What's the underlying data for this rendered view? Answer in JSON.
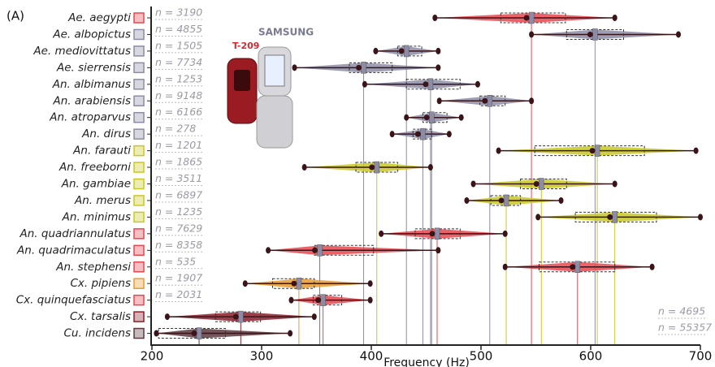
{
  "chart_data": {
    "type": "box",
    "panel_label": "(A)",
    "x_label": "Frequency (Hz)",
    "xlim": [
      200,
      700
    ],
    "xticks": [
      200,
      300,
      400,
      500,
      600,
      700
    ],
    "phone_brand": "SAMSUNG",
    "phone_model": "T-209",
    "categories": [
      "Ae. aegypti",
      "Ae. albopictus",
      "Ae. mediovittatus",
      "Ae. sierrensis",
      "An. albimanus",
      "An. arabiensis",
      "An. atroparvus",
      "An. dirus",
      "An. farauti",
      "An. freeborni",
      "An. gambiae",
      "An. merus",
      "An. minimus",
      "An. quadriannulatus",
      "An. quadrimaculatus",
      "An. stephensi",
      "Cx. pipiens",
      "Cx. quinquefasciatus",
      "Cx. tarsalis",
      "Cu. incidens"
    ],
    "n_labels": [
      "n = 3190",
      "n = 4855",
      "n = 1505",
      "n = 7734",
      "n = 1253",
      "n = 9148",
      "n = 6166",
      "n = 278",
      "n = 1201",
      "n = 1865",
      "n = 3511",
      "n = 6897",
      "n = 1235",
      "n = 7629",
      "n = 8358",
      "n = 535",
      "n = 1907",
      "n = 2031",
      "n = 4695",
      "n = 55357"
    ],
    "colors": [
      "#e8474f",
      "#8c8ca6",
      "#8c8ca6",
      "#8c8ca6",
      "#8c8ca6",
      "#8c8ca6",
      "#8c8ca6",
      "#8c8ca6",
      "#c8c824",
      "#c8c824",
      "#c8c824",
      "#c8c824",
      "#c8c824",
      "#e8474f",
      "#e8474f",
      "#e8474f",
      "#e89a30",
      "#e8474f",
      "#8a1f2a",
      "#5a3a40"
    ],
    "boxes": [
      {
        "min": 458,
        "q1": 518,
        "median": 546,
        "q3": 577,
        "max": 622
      },
      {
        "min": 546,
        "q1": 578,
        "median": 604,
        "q3": 630,
        "max": 680
      },
      {
        "min": 404,
        "q1": 424,
        "median": 432,
        "q3": 446,
        "max": 461
      },
      {
        "min": 330,
        "q1": 380,
        "median": 393,
        "q3": 419,
        "max": 461
      },
      {
        "min": 394,
        "q1": 432,
        "median": 454,
        "q3": 481,
        "max": 497
      },
      {
        "min": 462,
        "q1": 499,
        "median": 508,
        "q3": 522,
        "max": 546
      },
      {
        "min": 432,
        "q1": 447,
        "median": 455,
        "q3": 469,
        "max": 482
      },
      {
        "min": 419,
        "q1": 438,
        "median": 447,
        "q3": 455,
        "max": 471
      },
      {
        "min": 516,
        "q1": 549,
        "median": 606,
        "q3": 649,
        "max": 696
      },
      {
        "min": 339,
        "q1": 386,
        "median": 405,
        "q3": 424,
        "max": 454
      },
      {
        "min": 493,
        "q1": 536,
        "median": 555,
        "q3": 578,
        "max": 622
      },
      {
        "min": 487,
        "q1": 509,
        "median": 523,
        "q3": 536,
        "max": 573
      },
      {
        "min": 552,
        "q1": 586,
        "median": 622,
        "q3": 660,
        "max": 700
      },
      {
        "min": 409,
        "q1": 440,
        "median": 460,
        "q3": 481,
        "max": 522
      },
      {
        "min": 306,
        "q1": 348,
        "median": 353,
        "q3": 402,
        "max": 461
      },
      {
        "min": 522,
        "q1": 553,
        "median": 588,
        "q3": 622,
        "max": 656
      },
      {
        "min": 285,
        "q1": 310,
        "median": 334,
        "q3": 348,
        "max": 399
      },
      {
        "min": 327,
        "q1": 347,
        "median": 356,
        "q3": 373,
        "max": 399
      },
      {
        "min": 214,
        "q1": 258,
        "median": 281,
        "q3": 299,
        "max": 348
      },
      {
        "min": 204,
        "q1": 206,
        "median": 243,
        "q3": 267,
        "max": 326
      }
    ]
  }
}
